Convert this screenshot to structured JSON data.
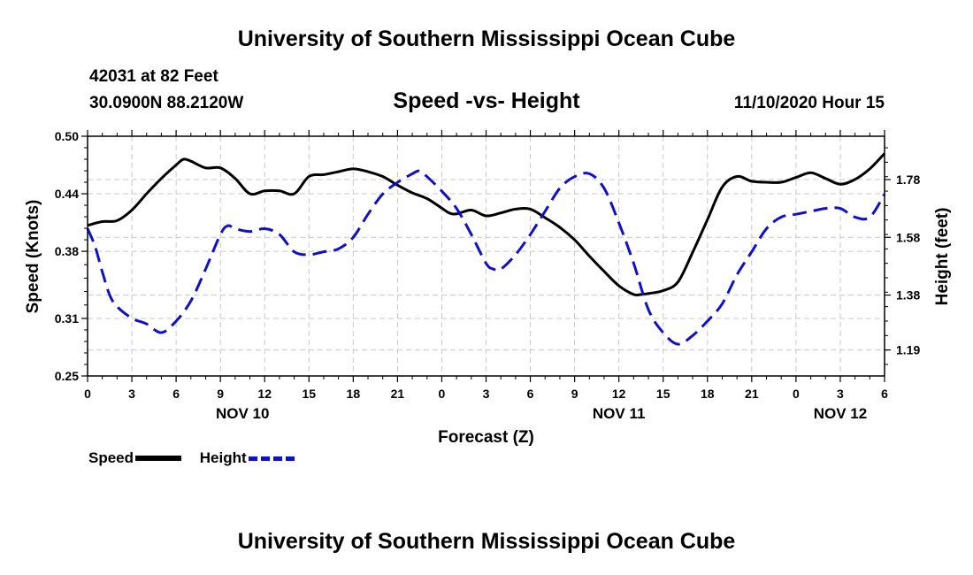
{
  "header": {
    "title": "University of Southern Mississippi Ocean Cube",
    "station": "42031 at 82 Feet",
    "coords": "30.0900N 88.2120W",
    "datetime": "11/10/2020 Hour 15"
  },
  "footer": {
    "title": "University of Southern Mississippi Ocean Cube"
  },
  "legend": {
    "speed_label": "Speed",
    "height_label": "Height"
  },
  "colors": {
    "speed": "#000000",
    "height": "#1010c8",
    "grid": "#c8c8c8"
  },
  "chart_data": {
    "type": "line",
    "title": "Speed -vs- Height",
    "xlabel": "Forecast (Z)",
    "ylabel": "Speed (Knots)",
    "y2label": "Height (feet)",
    "xlim": [
      0,
      54
    ],
    "ylim": [
      0.25,
      0.5
    ],
    "y2lim": [
      1.1,
      1.93
    ],
    "xticks": [
      0,
      3,
      6,
      9,
      12,
      15,
      18,
      21,
      24,
      27,
      30,
      33,
      36,
      39,
      42,
      45,
      48,
      51,
      54
    ],
    "xtick_labels": [
      "0",
      "3",
      "6",
      "9",
      "12",
      "15",
      "18",
      "21",
      "0",
      "3",
      "6",
      "9",
      "12",
      "15",
      "18",
      "21",
      "0",
      "3",
      "6"
    ],
    "day_labels": [
      {
        "x": 10.5,
        "label": "NOV 10"
      },
      {
        "x": 36,
        "label": "NOV 11"
      },
      {
        "x": 51,
        "label": "NOV 12"
      }
    ],
    "yticks": [
      0.25,
      0.31,
      0.38,
      0.44,
      0.5
    ],
    "ytick_labels": [
      "0.25",
      "0.31",
      "0.38",
      "0.44",
      "0.50"
    ],
    "y2ticks": [
      1.19,
      1.38,
      1.58,
      1.78
    ],
    "y2tick_labels": [
      "1.19",
      "1.38",
      "1.58",
      "1.78"
    ],
    "series": [
      {
        "name": "Speed",
        "axis": "left",
        "x": [
          0,
          1,
          2,
          3,
          4,
          5,
          6,
          6.5,
          7,
          8,
          9,
          10,
          11,
          12,
          13,
          14,
          15,
          16,
          17,
          18,
          19,
          20,
          21,
          22,
          23,
          24,
          24.5,
          25,
          26,
          27,
          28,
          29,
          30,
          31,
          32,
          33,
          34,
          35,
          36,
          37,
          37.5,
          38,
          39,
          40,
          41,
          42,
          43,
          44,
          45,
          46,
          47,
          48,
          49,
          50,
          51,
          52,
          53,
          54
        ],
        "values": [
          0.407,
          0.411,
          0.412,
          0.423,
          0.44,
          0.456,
          0.47,
          0.476,
          0.474,
          0.467,
          0.467,
          0.456,
          0.44,
          0.443,
          0.443,
          0.44,
          0.458,
          0.46,
          0.463,
          0.466,
          0.463,
          0.458,
          0.449,
          0.441,
          0.435,
          0.425,
          0.42,
          0.419,
          0.423,
          0.417,
          0.42,
          0.424,
          0.424,
          0.415,
          0.405,
          0.392,
          0.375,
          0.359,
          0.344,
          0.335,
          0.335,
          0.336,
          0.339,
          0.348,
          0.379,
          0.413,
          0.447,
          0.458,
          0.453,
          0.452,
          0.452,
          0.457,
          0.462,
          0.456,
          0.45,
          0.455,
          0.466,
          0.482
        ]
      },
      {
        "name": "Height",
        "axis": "right",
        "x": [
          0,
          0.5,
          1,
          1.5,
          2,
          3,
          4,
          5,
          6,
          7,
          8,
          9,
          9.5,
          10,
          11,
          12,
          13,
          14,
          15,
          16,
          17,
          18,
          19,
          20,
          21,
          22,
          22.5,
          23,
          24,
          25,
          26,
          27,
          27.5,
          28,
          29,
          30,
          31,
          32,
          33,
          34,
          35,
          36,
          37,
          38,
          39,
          40,
          41,
          42,
          43,
          44,
          45,
          46,
          47,
          48,
          49,
          50,
          51,
          52,
          53,
          54
        ],
        "values": [
          1.61,
          1.55,
          1.46,
          1.38,
          1.34,
          1.3,
          1.28,
          1.25,
          1.29,
          1.36,
          1.47,
          1.59,
          1.62,
          1.61,
          1.6,
          1.61,
          1.59,
          1.53,
          1.52,
          1.53,
          1.54,
          1.58,
          1.66,
          1.73,
          1.77,
          1.8,
          1.81,
          1.79,
          1.74,
          1.68,
          1.59,
          1.49,
          1.47,
          1.47,
          1.52,
          1.59,
          1.67,
          1.75,
          1.79,
          1.8,
          1.75,
          1.63,
          1.49,
          1.33,
          1.25,
          1.21,
          1.24,
          1.29,
          1.35,
          1.45,
          1.53,
          1.61,
          1.65,
          1.66,
          1.67,
          1.68,
          1.68,
          1.65,
          1.65,
          1.73
        ]
      }
    ]
  }
}
